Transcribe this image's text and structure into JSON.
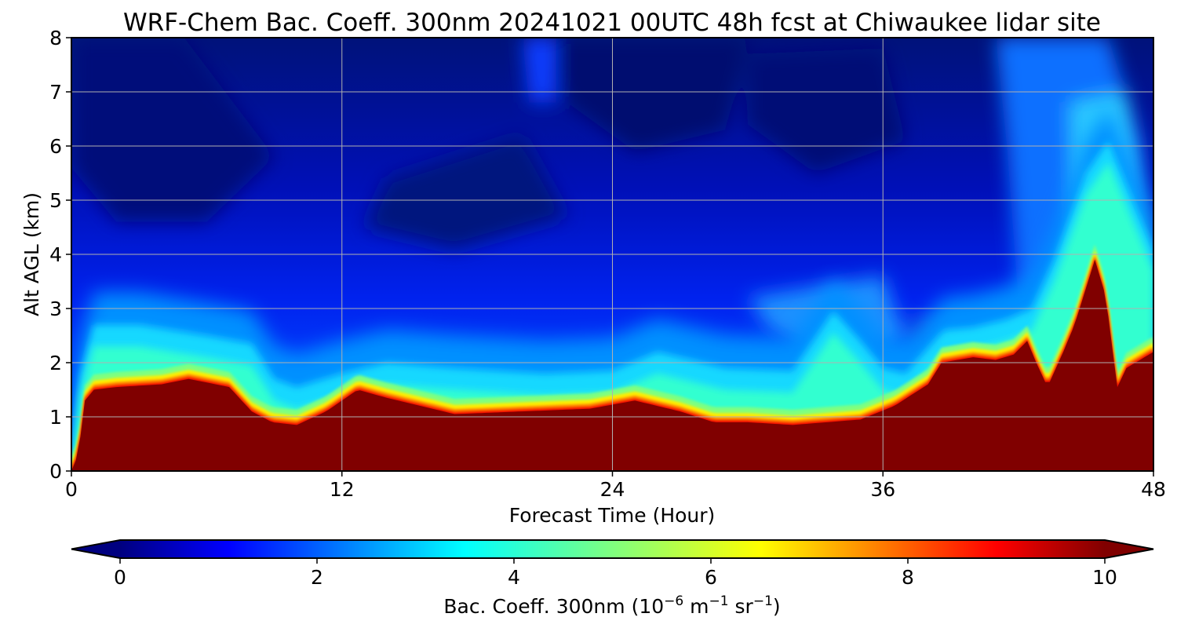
{
  "chart_data": {
    "type": "heatmap",
    "title": "WRF-Chem Bac. Coeff. 300nm  20241021 00UTC 48h fcst at Chiwaukee lidar site",
    "xlabel": "Forecast Time (Hour)",
    "ylabel": "Alt AGL (km)",
    "xlim": [
      0,
      48
    ],
    "ylim": [
      0,
      8
    ],
    "xticks": [
      0,
      12,
      24,
      36,
      48
    ],
    "yticks": [
      0,
      1,
      2,
      3,
      4,
      5,
      6,
      7,
      8
    ],
    "grid": true,
    "colormap": "jet",
    "colorbar": {
      "orientation": "horizontal",
      "placement": "bottom",
      "range": [
        0,
        10
      ],
      "ticks": [
        0,
        2,
        4,
        6,
        8,
        10
      ],
      "extend": "both",
      "label_text": "Bac. Coeff. 300nm  (10",
      "label_exp1": "−6",
      "label_unit1": " m",
      "label_exp2": "−1",
      "label_unit2": " sr",
      "label_exp3": "−1",
      "label_close": ")"
    },
    "saturation_top_km": {
      "hours": [
        0,
        0.3,
        0.6,
        1,
        2,
        4,
        5.2,
        7,
        8,
        8.9,
        10,
        11.3,
        12.7,
        14,
        17,
        20,
        23,
        25,
        27,
        28.5,
        30,
        32,
        35,
        36.5,
        38,
        38.6,
        40,
        41,
        41.8,
        42.4,
        42.8,
        43.3,
        44,
        44.5,
        45.4,
        45.9,
        46.1,
        46.4,
        46.8,
        48
      ],
      "values": [
        0,
        0.3,
        1.3,
        1.5,
        1.55,
        1.6,
        1.7,
        1.55,
        1.1,
        0.9,
        0.85,
        1.1,
        1.5,
        1.35,
        1.05,
        1.1,
        1.15,
        1.3,
        1.1,
        0.9,
        0.9,
        0.85,
        0.95,
        1.2,
        1.6,
        2.0,
        2.1,
        2.05,
        2.15,
        2.4,
        2.0,
        1.55,
        2.2,
        2.7,
        3.9,
        3.2,
        2.5,
        1.55,
        1.9,
        2.2
      ]
    },
    "aerosol_layer_km": {
      "hours": [
        0,
        0.4,
        1,
        3,
        6,
        8,
        9,
        10,
        12,
        14,
        17,
        21,
        24,
        26,
        29,
        32,
        33.8,
        35,
        36,
        37,
        38.7,
        40,
        41.5,
        42.6,
        43.6,
        45,
        46,
        47,
        48
      ],
      "values": [
        0,
        1.5,
        2.4,
        2.4,
        2.2,
        2.05,
        1.4,
        1.25,
        1.5,
        1.7,
        1.6,
        1.5,
        1.55,
        1.9,
        1.6,
        1.55,
        2.65,
        2.1,
        1.6,
        1.5,
        2.3,
        2.35,
        2.5,
        2.7,
        3.6,
        5.2,
        5.8,
        4.8,
        3.8
      ]
    }
  }
}
